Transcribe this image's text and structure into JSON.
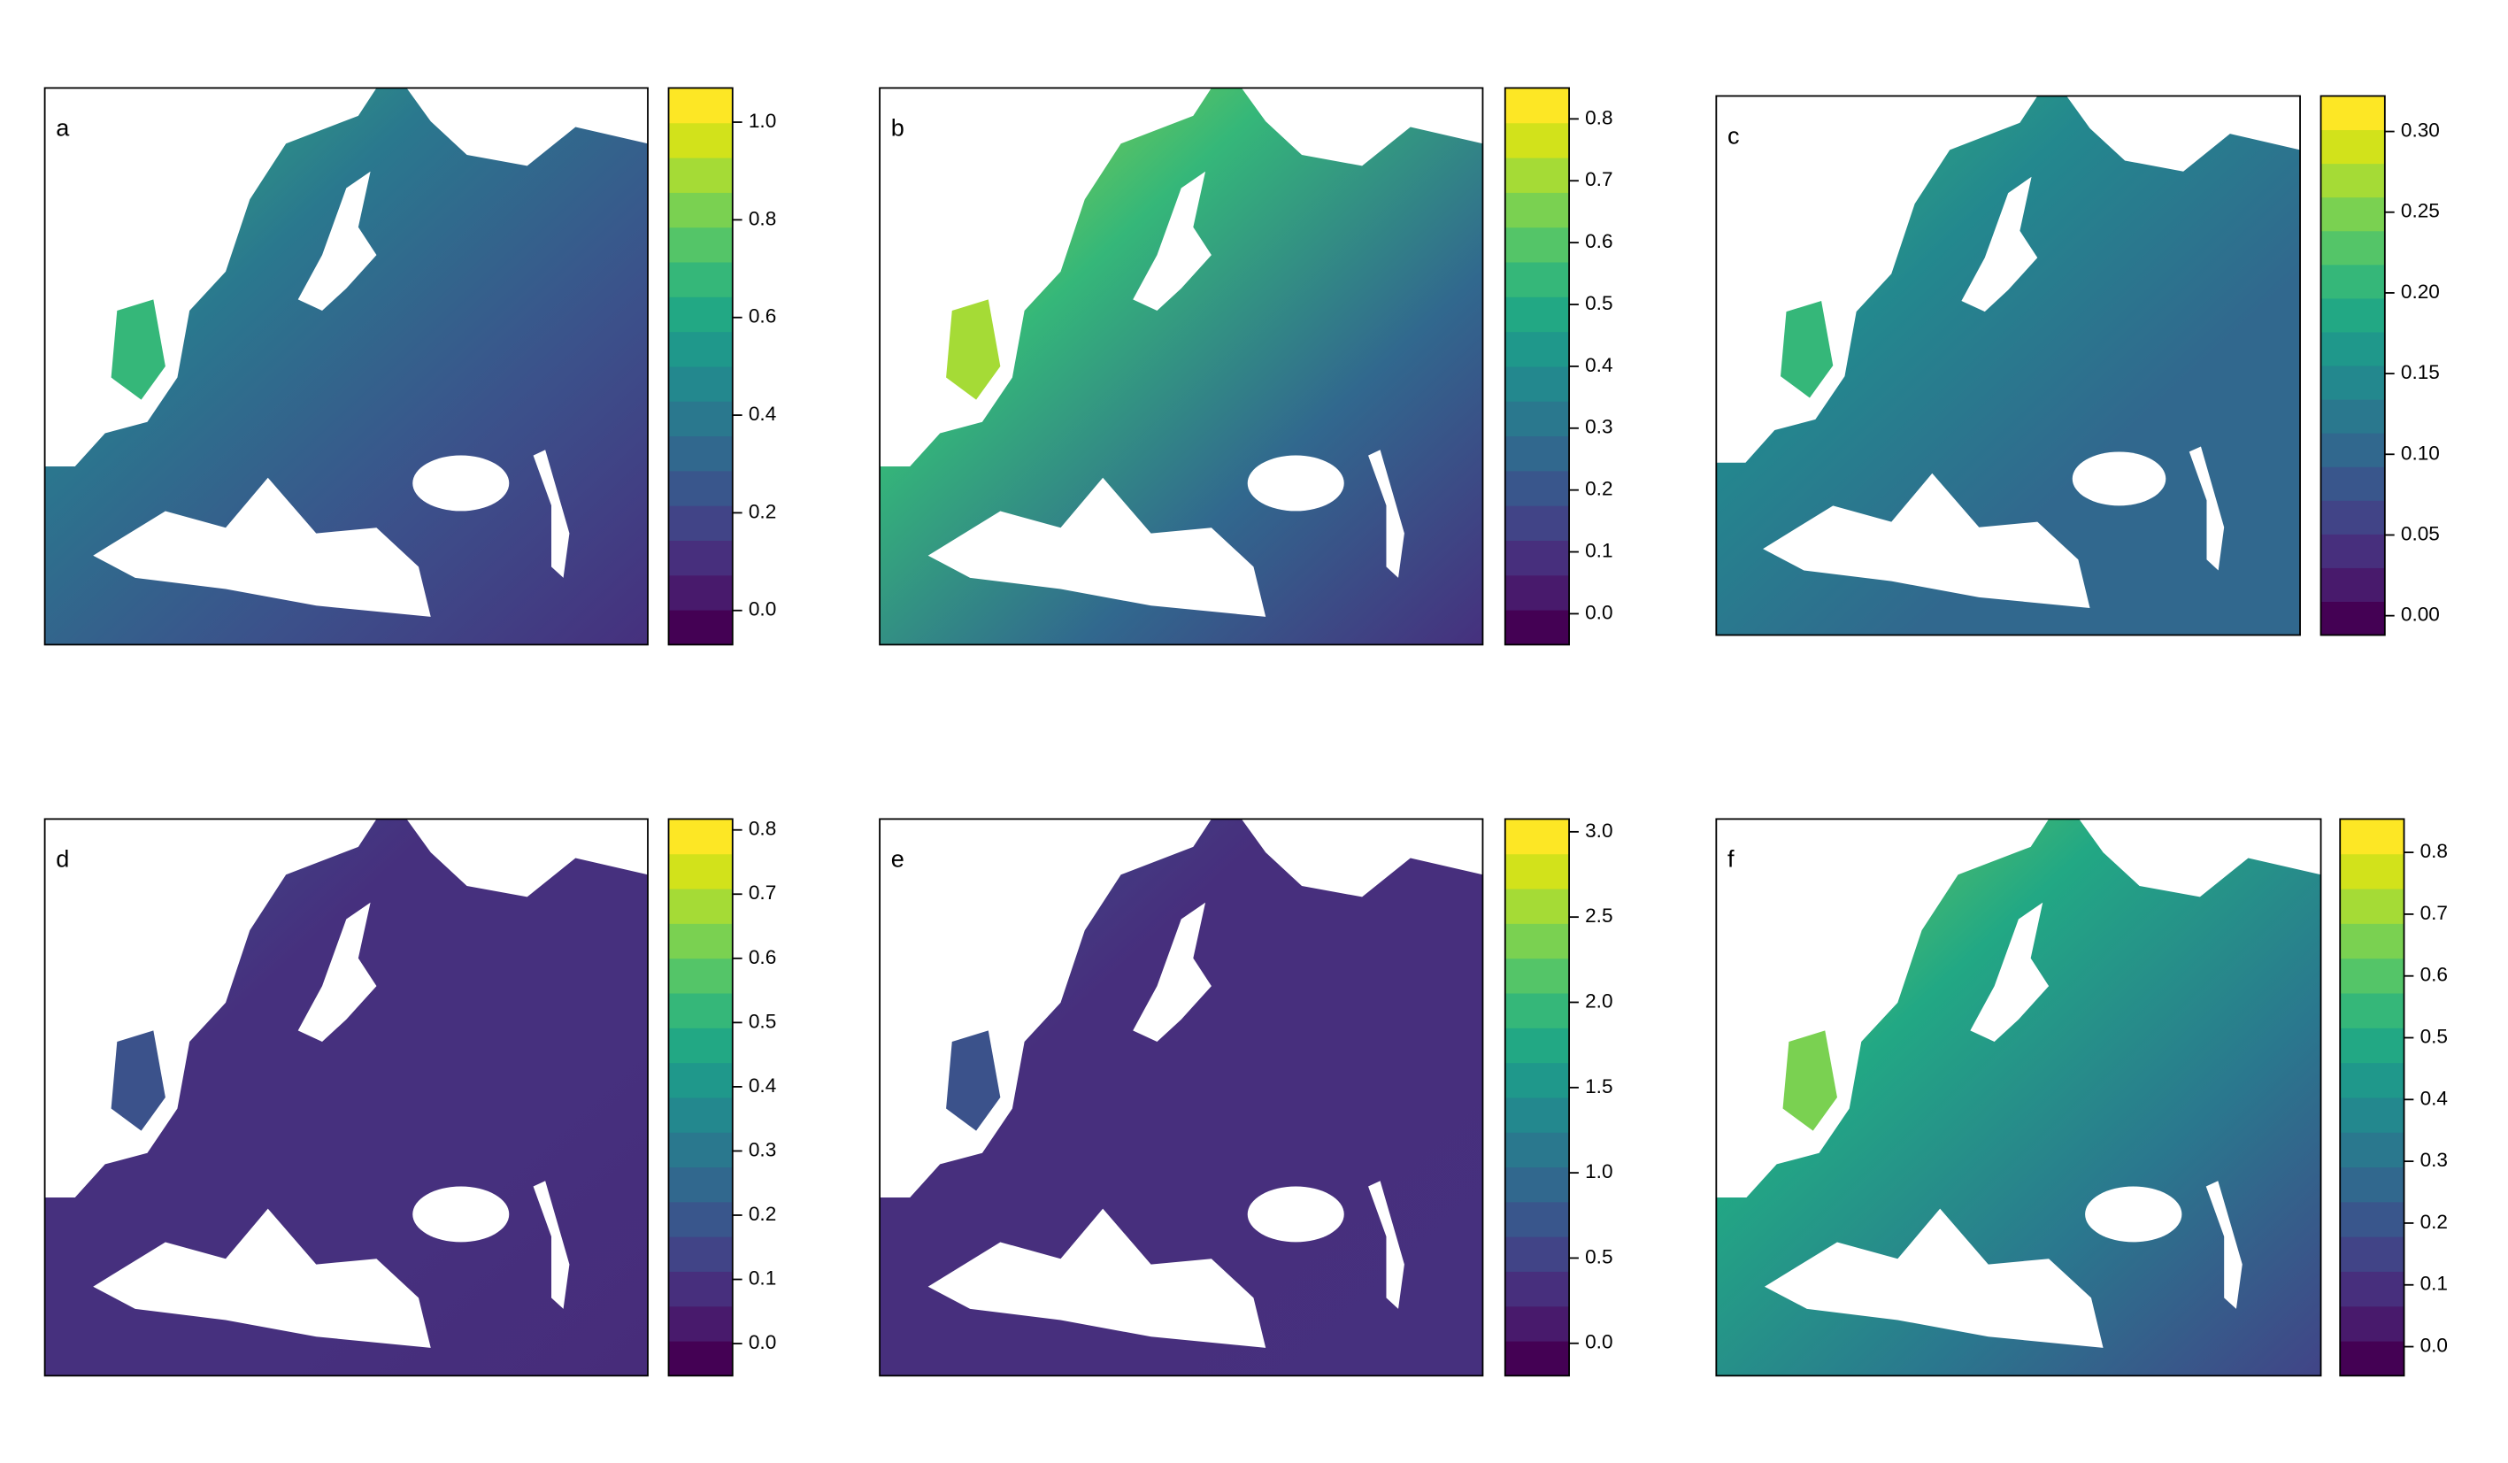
{
  "chart_data": [
    {
      "type": "map",
      "panel_label": "a",
      "ylim": [
        -0.07,
        1.07
      ],
      "yticks": [
        {
          "value": 0,
          "label": "0.0"
        },
        0.2,
        0.4,
        0.6,
        0.8,
        {
          "value": 1,
          "label": "1.0"
        }
      ],
      "colors": [
        "#440154",
        "#481a6c",
        "#472f7d",
        "#414487",
        "#39568c",
        "#31688e",
        "#2a788e",
        "#23888e",
        "#1f988b",
        "#22a884",
        "#35b779",
        "#54c568",
        "#7ad151",
        "#a5db36",
        "#d2e21b",
        "#fde725"
      ]
    },
    {
      "type": "map",
      "panel_label": "b",
      "ylim": [
        -0.05,
        0.85
      ],
      "yticks": [
        {
          "value": 0,
          "label": "0.0"
        },
        0.1,
        0.2,
        0.3,
        0.4,
        0.5,
        0.6,
        0.7,
        0.8
      ],
      "colors": [
        "#440154",
        "#481a6c",
        "#472f7d",
        "#414487",
        "#39568c",
        "#31688e",
        "#2a788e",
        "#23888e",
        "#1f988b",
        "#22a884",
        "#35b779",
        "#54c568",
        "#7ad151",
        "#a5db36",
        "#d2e21b",
        "#fde725"
      ]
    },
    {
      "type": "map",
      "panel_label": "c",
      "ylim": [
        -0.012,
        0.322
      ],
      "yticks": [
        {
          "value": 0,
          "label": "0.00"
        },
        {
          "value": 0.05,
          "label": "0.05"
        },
        {
          "value": 0.1,
          "label": "0.10"
        },
        {
          "value": 0.15,
          "label": "0.15"
        },
        {
          "value": 0.2,
          "label": "0.20"
        },
        {
          "value": 0.25,
          "label": "0.25"
        },
        {
          "value": 0.3,
          "label": "0.30"
        }
      ],
      "colors": [
        "#440154",
        "#481a6c",
        "#472f7d",
        "#414487",
        "#39568c",
        "#31688e",
        "#2a788e",
        "#23888e",
        "#1f988b",
        "#22a884",
        "#35b779",
        "#54c568",
        "#7ad151",
        "#a5db36",
        "#d2e21b",
        "#fde725"
      ]
    },
    {
      "type": "map",
      "panel_label": "d",
      "ylim": [
        -0.05,
        0.817
      ],
      "yticks": [
        {
          "value": 0,
          "label": "0.0"
        },
        0.1,
        0.2,
        0.3,
        0.4,
        0.5,
        0.6,
        0.7,
        0.8
      ],
      "colors": [
        "#440154",
        "#481a6c",
        "#472f7d",
        "#414487",
        "#39568c",
        "#31688e",
        "#2a788e",
        "#23888e",
        "#1f988b",
        "#22a884",
        "#35b779",
        "#54c568",
        "#7ad151",
        "#a5db36",
        "#d2e21b",
        "#fde725"
      ]
    },
    {
      "type": "map",
      "panel_label": "e",
      "ylim": [
        -0.19,
        3.075
      ],
      "yticks": [
        {
          "value": 0,
          "label": "0.0"
        },
        0.5,
        {
          "value": 1,
          "label": "1.0"
        },
        1.5,
        {
          "value": 2,
          "label": "2.0"
        },
        2.5,
        {
          "value": 3,
          "label": "3.0"
        }
      ],
      "colors": [
        "#440154",
        "#481a6c",
        "#472f7d",
        "#414487",
        "#39568c",
        "#31688e",
        "#2a788e",
        "#23888e",
        "#1f988b",
        "#22a884",
        "#35b779",
        "#54c568",
        "#7ad151",
        "#a5db36",
        "#d2e21b",
        "#fde725"
      ]
    },
    {
      "type": "map",
      "panel_label": "f",
      "ylim": [
        -0.047,
        0.854
      ],
      "yticks": [
        {
          "value": 0,
          "label": "0.0"
        },
        0.1,
        0.2,
        0.3,
        0.4,
        0.5,
        0.6,
        0.7,
        0.8
      ],
      "colors": [
        "#440154",
        "#481a6c",
        "#472f7d",
        "#414487",
        "#39568c",
        "#31688e",
        "#2a788e",
        "#23888e",
        "#1f988b",
        "#22a884",
        "#35b779",
        "#54c568",
        "#7ad151",
        "#a5db36",
        "#d2e21b",
        "#fde725"
      ]
    }
  ]
}
